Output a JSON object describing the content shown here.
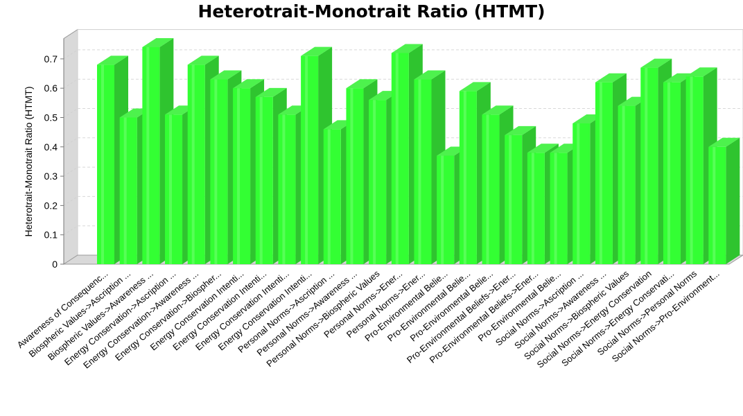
{
  "chart_data": {
    "type": "bar",
    "title": "Heterotrait-Monotrait Ratio (HTMT)",
    "xlabel": "",
    "ylabel": "Heterotrait-Monotrait Ratio (HTMT)",
    "ylim": [
      0,
      0.8
    ],
    "y_ticks": [
      "0",
      "0.1",
      "0.2",
      "0.3",
      "0.4",
      "0.5",
      "0.6",
      "0.7"
    ],
    "grid": true,
    "legend": "none",
    "bar_color": "#33ff33",
    "categories": [
      "Awareness of Consequenc...",
      "Biospheric Values->Ascription ...",
      "Biospheric Values->Awareness ...",
      "Energy Conservation->Ascription ...",
      "Energy Conservation->Awareness ...",
      "Energy Conservation->Biospher...",
      "Energy Conservation Intenti...",
      "Energy Conservation Intenti...",
      "Energy Conservation Intenti...",
      "Energy Conservation Intenti...",
      "Personal Norms->Ascription ...",
      "Personal Norms->Awareness ...",
      "Personal Norms->Biospheric Values",
      "Personal Norms->Ener...",
      "Personal Norms->Ener...",
      "Pro-Environmental Belie...",
      "Pro-Environmental Belie...",
      "Pro-Environmental Belie...",
      "Pro-Environmental Beliefs->Ener...",
      "Pro-Environmental Beliefs->Ener...",
      "Pro-Environmental Belie...",
      "Social Norms->Ascription ...",
      "Social Norms->Awareness ...",
      "Social Norms->Biospheric Values",
      "Social Norms->Energy Conservation",
      "Social Norms->Energy Conservati...",
      "Social Norms->Personal Norms",
      "Social Norms->Pro-Environment..."
    ],
    "values": [
      0.68,
      0.5,
      0.74,
      0.51,
      0.68,
      0.63,
      0.6,
      0.57,
      0.51,
      0.71,
      0.46,
      0.6,
      0.56,
      0.72,
      0.63,
      0.37,
      0.59,
      0.51,
      0.44,
      0.38,
      0.38,
      0.48,
      0.62,
      0.54,
      0.67,
      0.62,
      0.64,
      0.4
    ]
  }
}
